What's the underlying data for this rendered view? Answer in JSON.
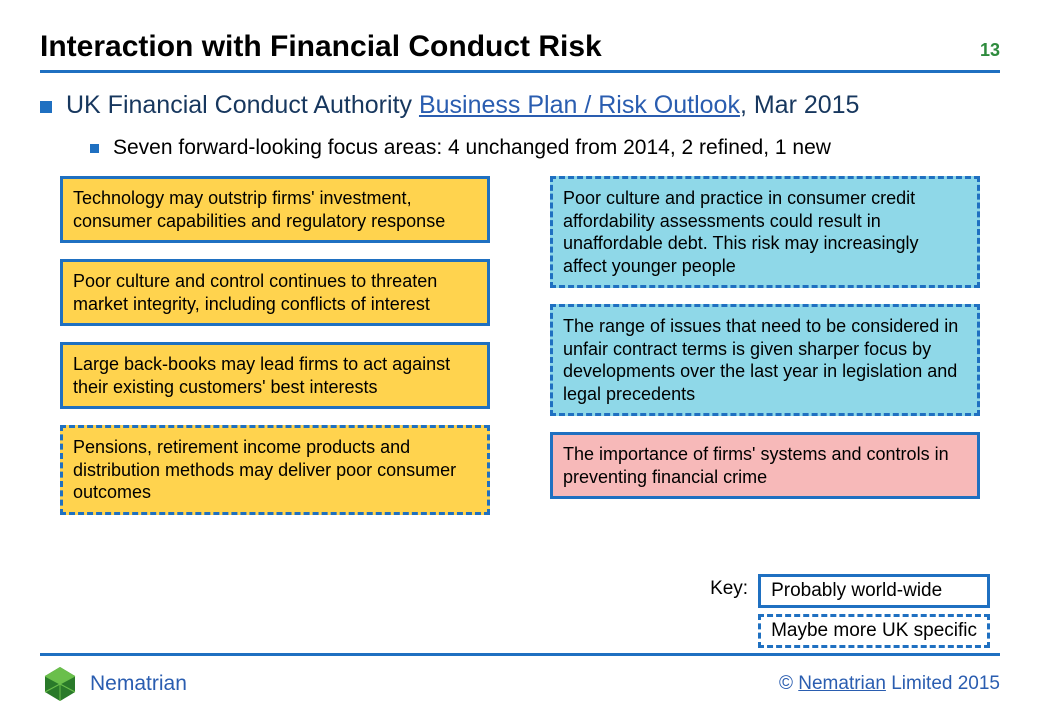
{
  "colors": {
    "accent": "#1f70c1",
    "page_num": "#2e8b3d",
    "title_text": "#000000",
    "main_text": "#17375e",
    "link": "#2a5db0",
    "border": "#1f70c1",
    "box_yellow": "#ffd34e",
    "box_blue": "#8fd8e8",
    "box_pink": "#f7b9b9",
    "footer_brand": "#2a5db0",
    "logo_green_dark": "#2a7a2a",
    "logo_green_light": "#6abf4b"
  },
  "header": {
    "title": "Interaction with Financial Conduct Risk",
    "page_number": "13"
  },
  "main_bullet": {
    "prefix": "UK Financial Conduct Authority ",
    "link_text": "Business Plan / Risk Outlook",
    "suffix": ", Mar 2015"
  },
  "sub_bullet": "Seven forward-looking focus areas: 4 unchanged from 2014, 2 refined, 1 new",
  "boxes": {
    "left": [
      {
        "fill": "box_yellow",
        "style": "solid-border",
        "text": "Technology may outstrip firms' investment, consumer capabilities and regulatory response"
      },
      {
        "fill": "box_yellow",
        "style": "solid-border",
        "text": "Poor culture and control continues to threaten market integrity, including conflicts of interest"
      },
      {
        "fill": "box_yellow",
        "style": "solid-border",
        "text": "Large back-books may lead firms to act against their existing customers' best interests"
      },
      {
        "fill": "box_yellow",
        "style": "dashed-border",
        "text": "Pensions, retirement income products and distribution methods may deliver poor consumer outcomes"
      }
    ],
    "right": [
      {
        "fill": "box_blue",
        "style": "dashed-border",
        "text": "Poor culture and practice in consumer credit affordability assessments could result in unaffordable debt. This risk may increasingly affect younger people"
      },
      {
        "fill": "box_blue",
        "style": "dashed-border",
        "text": "The range of issues that need to be considered in unfair contract terms is given sharper focus by developments over the last year in legislation and legal precedents"
      },
      {
        "fill": "box_pink",
        "style": "solid-border",
        "text": "The importance of firms' systems and controls in preventing financial crime"
      }
    ]
  },
  "key": {
    "label": "Key:",
    "items": [
      {
        "style": "solid-border",
        "text": "Probably world-wide"
      },
      {
        "style": "dashed-border",
        "text": "Maybe more UK specific"
      }
    ]
  },
  "footer": {
    "brand": "Nematrian",
    "copyright_prefix": "© ",
    "copyright_brand": "Nematrian",
    "copyright_suffix": " Limited 2015"
  }
}
